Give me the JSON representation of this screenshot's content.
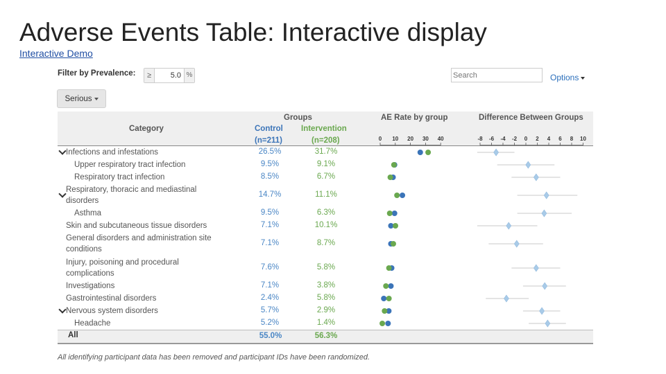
{
  "title": "Adverse Events Table: Interactive display",
  "demo_link": "Interactive Demo",
  "filter": {
    "label": "Filter by Prevalence:",
    "operator": "≥",
    "value": "5.0",
    "unit": "%"
  },
  "serious_button": "Serious",
  "search": {
    "placeholder": "Search"
  },
  "options_label": "Options",
  "headers": {
    "groups": "Groups",
    "category": "Category",
    "control": "Control",
    "control_n": "(n=211)",
    "intervention": "Intervention",
    "intervention_n": "(n=208)",
    "ae_rate": "AE Rate by group",
    "difference": "Difference Between Groups"
  },
  "rate_axis_ticks": [
    "0",
    "10",
    "20",
    "30",
    "40"
  ],
  "diff_axis_ticks": [
    "-8",
    "-6",
    "-4",
    "-2",
    "0",
    "2",
    "4",
    "6",
    "8",
    "10"
  ],
  "rows": [
    {
      "label": "Infections and infestations",
      "control": "26.5%",
      "intervention": "31.7%",
      "expandable": true,
      "indent": false,
      "lines": [
        "Infections and infestations"
      ],
      "c": 26.5,
      "i": 31.7,
      "diff": -5.2,
      "ci": [
        -8.5,
        -2.0
      ]
    },
    {
      "label": "Upper respiratory tract infection",
      "control": "9.5%",
      "intervention": "9.1%",
      "expandable": false,
      "indent": true,
      "lines": [
        "Upper respiratory tract infection"
      ],
      "c": 9.5,
      "i": 9.1,
      "diff": 0.4,
      "ci": [
        -5.0,
        5.0
      ]
    },
    {
      "label": "Respiratory tract infection",
      "control": "8.5%",
      "intervention": "6.7%",
      "expandable": false,
      "indent": true,
      "lines": [
        "Respiratory tract infection"
      ],
      "c": 8.5,
      "i": 6.7,
      "diff": 1.8,
      "ci": [
        -2.5,
        6.0
      ]
    },
    {
      "label": "Respiratory, thoracic and mediastinal disorders",
      "control": "14.7%",
      "intervention": "11.1%",
      "expandable": true,
      "indent": false,
      "lines": [
        "Respiratory, thoracic and mediastinal",
        "disorders"
      ],
      "c": 14.7,
      "i": 11.1,
      "diff": 3.6,
      "ci": [
        -1.5,
        9.0
      ]
    },
    {
      "label": "Asthma",
      "control": "9.5%",
      "intervention": "6.3%",
      "expandable": false,
      "indent": true,
      "lines": [
        "Asthma"
      ],
      "c": 9.5,
      "i": 6.3,
      "diff": 3.2,
      "ci": [
        -1.5,
        8.0
      ]
    },
    {
      "label": "Skin and subcutaneous tissue disorders",
      "control": "7.1%",
      "intervention": "10.1%",
      "expandable": false,
      "indent": false,
      "lines": [
        "Skin and subcutaneous tissue disorders"
      ],
      "c": 7.1,
      "i": 10.1,
      "diff": -3.0,
      "ci": [
        -8.5,
        2.0
      ]
    },
    {
      "label": "General disorders and administration site conditions",
      "control": "7.1%",
      "intervention": "8.7%",
      "expandable": false,
      "indent": false,
      "lines": [
        "General disorders and administration site",
        "conditions"
      ],
      "c": 7.1,
      "i": 8.7,
      "diff": -1.6,
      "ci": [
        -6.5,
        3.0
      ]
    },
    {
      "label": "Injury, poisoning and procedural complications",
      "control": "7.6%",
      "intervention": "5.8%",
      "expandable": false,
      "indent": false,
      "lines": [
        "Injury, poisoning and procedural",
        "complications"
      ],
      "c": 7.6,
      "i": 5.8,
      "diff": 1.8,
      "ci": [
        -2.5,
        6.0
      ]
    },
    {
      "label": "Investigations",
      "control": "7.1%",
      "intervention": "3.8%",
      "expandable": false,
      "indent": false,
      "lines": [
        "Investigations"
      ],
      "c": 7.1,
      "i": 3.8,
      "diff": 3.3,
      "ci": [
        -0.5,
        7.0
      ]
    },
    {
      "label": "Gastrointestinal disorders",
      "control": "2.4%",
      "intervention": "5.8%",
      "expandable": false,
      "indent": false,
      "lines": [
        "Gastrointestinal disorders"
      ],
      "c": 2.4,
      "i": 5.8,
      "diff": -3.4,
      "ci": [
        -7.0,
        0.5
      ]
    },
    {
      "label": "Nervous system disorders",
      "control": "5.7%",
      "intervention": "2.9%",
      "expandable": true,
      "indent": false,
      "lines": [
        "Nervous system disorders"
      ],
      "c": 5.7,
      "i": 2.9,
      "diff": 2.8,
      "ci": [
        -0.5,
        6.0
      ]
    },
    {
      "label": "Headache",
      "control": "5.2%",
      "intervention": "1.4%",
      "expandable": false,
      "indent": true,
      "lines": [
        "Headache"
      ],
      "c": 5.2,
      "i": 1.4,
      "diff": 3.8,
      "ci": [
        0.5,
        7.0
      ]
    }
  ],
  "all_row": {
    "label": "All",
    "control": "55.0%",
    "intervention": "56.3%"
  },
  "footnote": "All identifying participant data has been removed and participant IDs have been randomized.",
  "colors": {
    "control": "#3b74b8",
    "intervention": "#6aa84f",
    "diff_marker": "#a9cbe8",
    "link": "#1f4ea3"
  }
}
